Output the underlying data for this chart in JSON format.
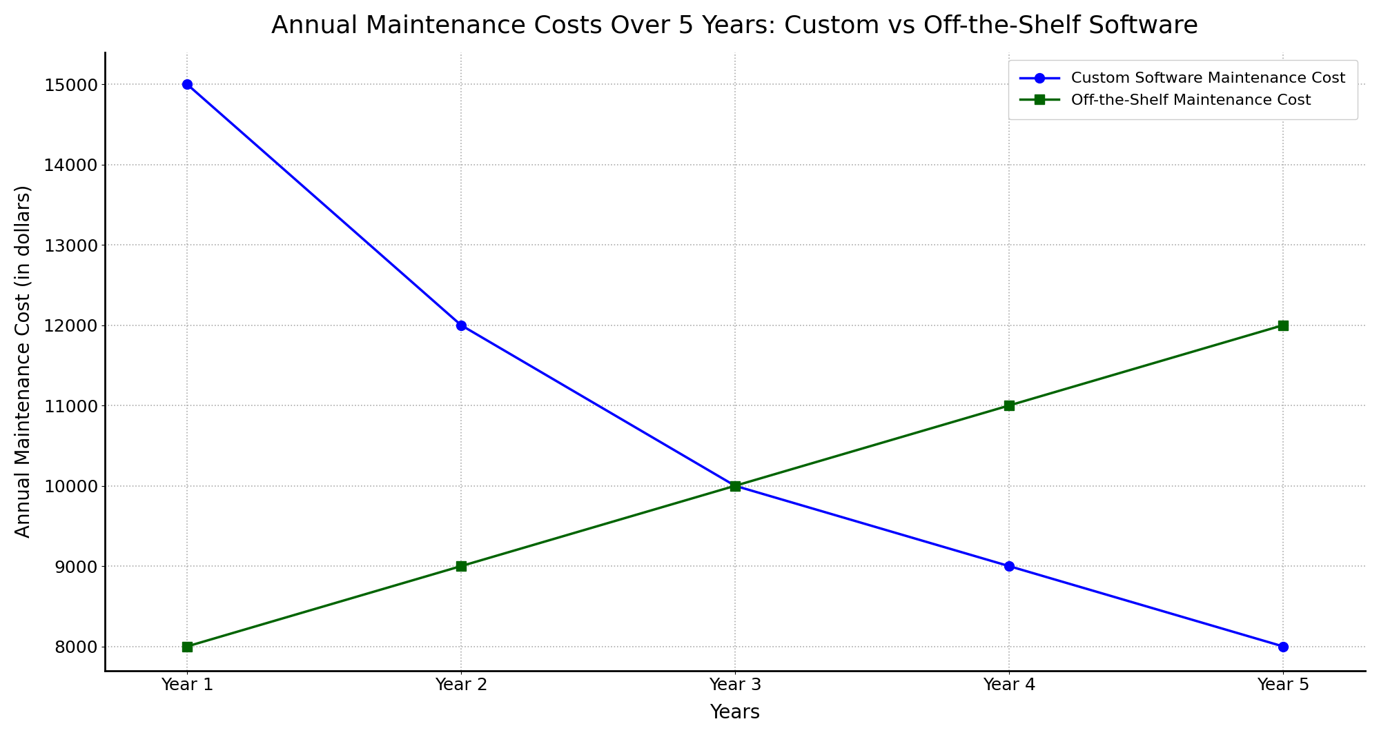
{
  "title": "Annual Maintenance Costs Over 5 Years: Custom vs Off-the-Shelf Software",
  "xlabel": "Years",
  "ylabel": "Annual Maintenance Cost (in dollars)",
  "years": [
    "Year 1",
    "Year 2",
    "Year 3",
    "Year 4",
    "Year 5"
  ],
  "custom_costs": [
    15000,
    12000,
    10000,
    9000,
    8000
  ],
  "offshelf_costs": [
    8000,
    9000,
    10000,
    11000,
    12000
  ],
  "custom_color": "#0000FF",
  "offshelf_color": "#006400",
  "custom_label": "Custom Software Maintenance Cost",
  "offshelf_label": "Off-the-Shelf Maintenance Cost",
  "ylim": [
    7700,
    15400
  ],
  "grid_color": "#aaaaaa",
  "grid_style": ":",
  "grid_alpha": 1.0,
  "custom_marker": "o",
  "offshelf_marker": "s",
  "linewidth": 2.5,
  "markersize": 10,
  "title_fontsize": 26,
  "label_fontsize": 20,
  "tick_fontsize": 18,
  "legend_fontsize": 16,
  "bg_color": "#ffffff"
}
